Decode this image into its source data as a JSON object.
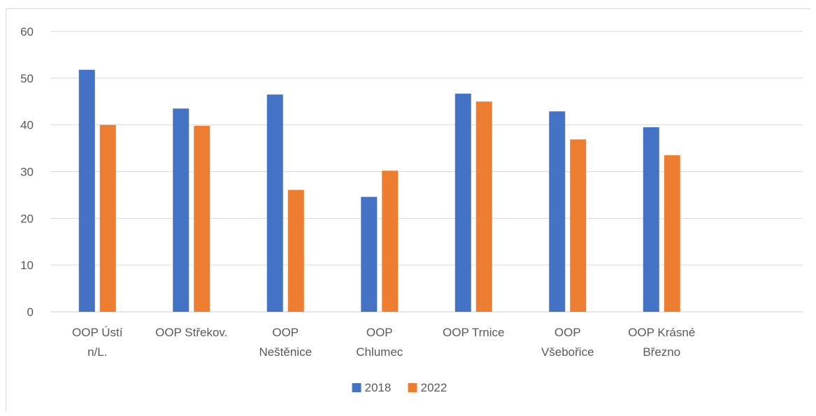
{
  "chart_data": {
    "type": "bar",
    "title": "",
    "xlabel": "",
    "ylabel": "",
    "ylim": [
      0,
      60
    ],
    "yticks": [
      0,
      10,
      20,
      30,
      40,
      50,
      60
    ],
    "grid": true,
    "legend_position": "bottom",
    "categories": [
      [
        "OOP Ústí",
        "n/L."
      ],
      [
        "OOP Střekov."
      ],
      [
        "OOP",
        "Neštěnice"
      ],
      [
        "OOP",
        "Chlumec"
      ],
      [
        "OOP Trnice"
      ],
      [
        "OOP",
        "Všebořice"
      ],
      [
        "OOP Krásné",
        "Březno"
      ]
    ],
    "series": [
      {
        "name": "2018",
        "color": "#4472C4",
        "values": [
          51.8,
          43.5,
          46.5,
          24.6,
          46.7,
          42.9,
          39.5
        ]
      },
      {
        "name": "2022",
        "color": "#ED7D31",
        "values": [
          40.0,
          39.8,
          26.1,
          30.2,
          45.0,
          36.9,
          33.5
        ]
      }
    ]
  }
}
